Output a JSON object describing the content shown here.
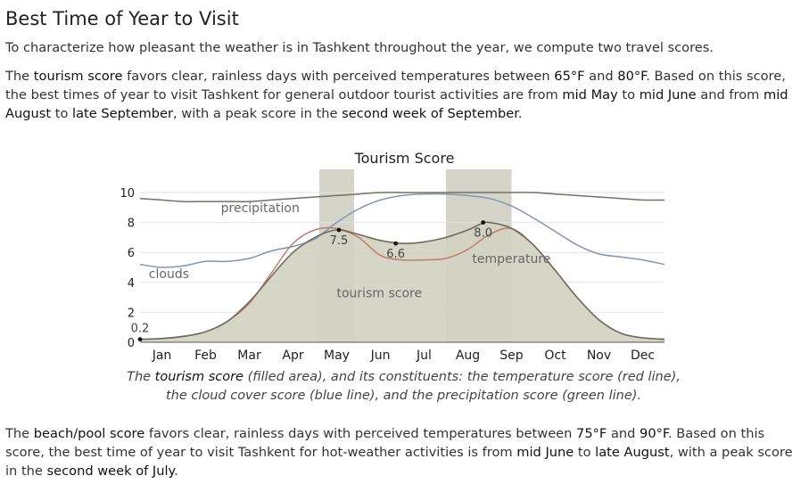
{
  "page": {
    "heading": "Best Time of Year to Visit",
    "intro": "To characterize how pleasant the weather is in Tashkent throughout the year, we compute two travel scores.",
    "tourism_para": {
      "t1": "The ",
      "h1": "tourism score",
      "t2": " favors clear, rainless days with perceived temperatures between ",
      "h2": "65°F",
      "t3": " and ",
      "h3": "80°F",
      "t4": ". Based on this score, the best times of year to visit Tashkent for general outdoor tourist activities are from ",
      "h4": "mid May",
      "t5": " to ",
      "h5": "mid June",
      "t6": " and from ",
      "h6": "mid August",
      "t7": " to ",
      "h7": "late September",
      "t8": ", with a peak score in the ",
      "h8": "second week of September",
      "t9": "."
    },
    "caption": {
      "c1": "The ",
      "c2": "tourism score",
      "c3": " (filled area), and its constituents: the temperature score (red line), the cloud cover score (blue line), and the precipitation score (green line)."
    },
    "beach_para": {
      "t1": "The ",
      "h1": "beach/pool score",
      "t2": " favors clear, rainless days with perceived temperatures between ",
      "h2": "75°F",
      "t3": " and ",
      "h3": "90°F",
      "t4": ". Based on this score, the best time of year to visit Tashkent for hot-weather activities is from ",
      "h4": "mid June",
      "t5": " to ",
      "h5": "late August",
      "t6": ", with a peak score in the ",
      "h6": "second week of July",
      "t7": "."
    }
  },
  "chart_data": {
    "type": "area",
    "title": "Tourism Score",
    "xlabel": "",
    "ylabel": "",
    "x_range": [
      0,
      12
    ],
    "ylim": [
      0,
      10
    ],
    "yticks": [
      0,
      2,
      4,
      6,
      8,
      10
    ],
    "month_labels": [
      "Jan",
      "Feb",
      "Mar",
      "Apr",
      "May",
      "Jun",
      "Jul",
      "Aug",
      "Sep",
      "Oct",
      "Nov",
      "Dec"
    ],
    "highlight_ranges": [
      [
        4.1,
        4.9
      ],
      [
        7.0,
        8.5
      ]
    ],
    "colors": {
      "tourism_fill": "#d3d2c2",
      "tourism_line": "#706c5d",
      "temperature": "#c77b6c",
      "clouds": "#7f97b2",
      "precipitation": "#6e7560",
      "highlight": "#d4d4c8"
    },
    "series": [
      {
        "name": "tourism score",
        "x": [
          0,
          0.5,
          1,
          1.5,
          2,
          2.5,
          3,
          3.5,
          4,
          4.5,
          5,
          5.5,
          6,
          6.5,
          7,
          7.5,
          7.8,
          8,
          8.5,
          9,
          9.5,
          10,
          10.5,
          11,
          11.5,
          12
        ],
        "values": [
          0.2,
          0.25,
          0.4,
          0.7,
          1.4,
          2.7,
          4.4,
          6.0,
          7.0,
          7.5,
          7.2,
          6.8,
          6.6,
          6.7,
          7.0,
          7.5,
          7.9,
          8.0,
          7.6,
          6.5,
          4.8,
          3.0,
          1.5,
          0.6,
          0.3,
          0.2
        ]
      },
      {
        "name": "temperature",
        "x": [
          0,
          0.5,
          1,
          1.5,
          2,
          2.5,
          3,
          3.5,
          4,
          4.5,
          5,
          5.5,
          6,
          6.5,
          7,
          7.5,
          8,
          8.5,
          9,
          9.5,
          10,
          10.5,
          11,
          11.5,
          12
        ],
        "values": [
          0.2,
          0.25,
          0.4,
          0.7,
          1.4,
          2.6,
          4.6,
          6.6,
          7.5,
          7.6,
          7.0,
          5.8,
          5.5,
          5.5,
          5.6,
          6.2,
          7.2,
          7.6,
          6.5,
          4.8,
          3.0,
          1.5,
          0.6,
          0.3,
          0.2
        ]
      },
      {
        "name": "clouds",
        "x": [
          0,
          0.5,
          1,
          1.5,
          2,
          2.5,
          3,
          3.5,
          4,
          4.5,
          5,
          5.5,
          6,
          6.5,
          7,
          7.5,
          8,
          8.5,
          9,
          9.5,
          10,
          10.5,
          11,
          11.5,
          12
        ],
        "values": [
          5.2,
          5.0,
          5.1,
          5.4,
          5.4,
          5.6,
          6.1,
          6.4,
          6.9,
          8.0,
          8.9,
          9.5,
          9.8,
          9.9,
          9.9,
          9.8,
          9.6,
          9.1,
          8.3,
          7.4,
          6.5,
          5.9,
          5.7,
          5.5,
          5.2
        ]
      },
      {
        "name": "precipitation",
        "x": [
          0,
          0.5,
          1,
          1.5,
          2,
          2.5,
          3,
          3.5,
          4,
          4.5,
          5,
          5.5,
          6,
          6.5,
          7,
          7.5,
          8,
          8.5,
          9,
          9.5,
          10,
          10.5,
          11,
          11.5,
          12
        ],
        "values": [
          9.6,
          9.5,
          9.4,
          9.4,
          9.4,
          9.4,
          9.5,
          9.6,
          9.7,
          9.8,
          9.9,
          10.0,
          10.0,
          10.0,
          10.0,
          10.0,
          10.0,
          10.0,
          10.0,
          9.9,
          9.8,
          9.7,
          9.6,
          9.5,
          9.5
        ]
      }
    ],
    "annotations": [
      {
        "text": "0.2",
        "x": 0.0,
        "y": 0.2
      },
      {
        "text": "7.5",
        "x": 4.55,
        "y": 7.5
      },
      {
        "text": "6.6",
        "x": 5.85,
        "y": 6.6
      },
      {
        "text": "8.0",
        "x": 7.85,
        "y": 8.0
      }
    ],
    "series_labels": [
      {
        "text": "precipitation",
        "x": 1.85,
        "y": 8.7
      },
      {
        "text": "clouds",
        "x": 0.2,
        "y": 4.3
      },
      {
        "text": "tourism score",
        "x": 4.5,
        "y": 3.0
      },
      {
        "text": "temperature",
        "x": 7.6,
        "y": 5.3
      }
    ]
  }
}
